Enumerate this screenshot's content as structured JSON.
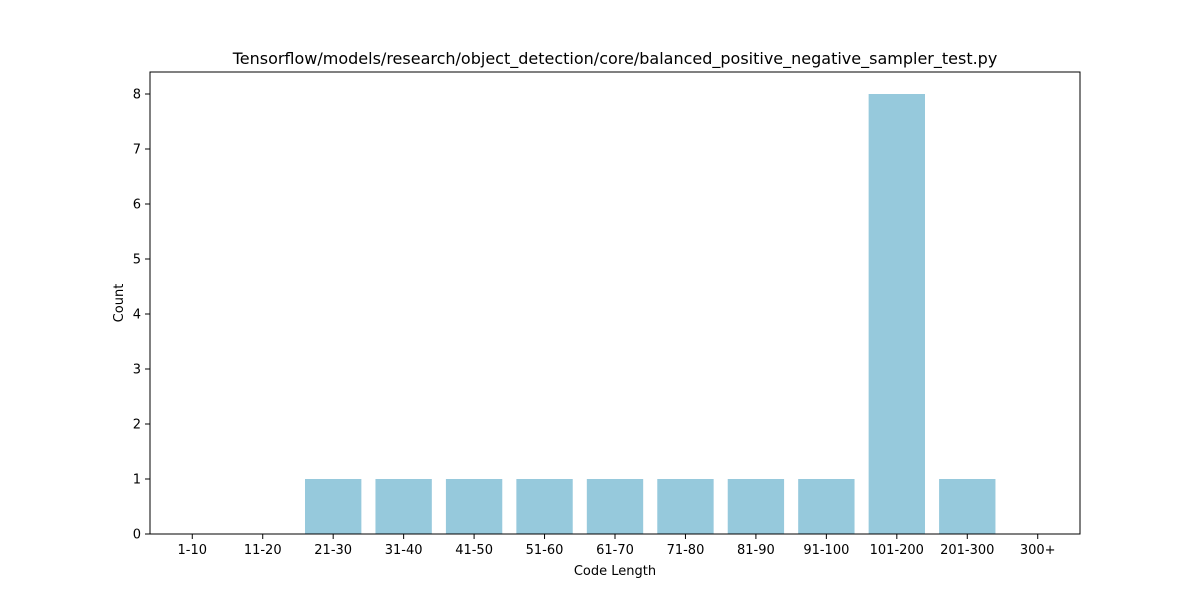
{
  "chart_data": {
    "type": "bar",
    "title": "Tensorflow/models/research/object_detection/core/balanced_positive_negative_sampler_test.py",
    "xlabel": "Code Length",
    "ylabel": "Count",
    "categories": [
      "1-10",
      "11-20",
      "21-30",
      "31-40",
      "41-50",
      "51-60",
      "61-70",
      "71-80",
      "81-90",
      "91-100",
      "101-200",
      "201-300",
      "300+"
    ],
    "values": [
      0,
      0,
      1,
      1,
      1,
      1,
      1,
      1,
      1,
      1,
      8,
      1,
      0
    ],
    "yticks": [
      0,
      1,
      2,
      3,
      4,
      5,
      6,
      7,
      8
    ],
    "ylim": [
      0,
      8.4
    ],
    "bar_color": "#96c9dc",
    "grid": false,
    "legend": "none"
  }
}
